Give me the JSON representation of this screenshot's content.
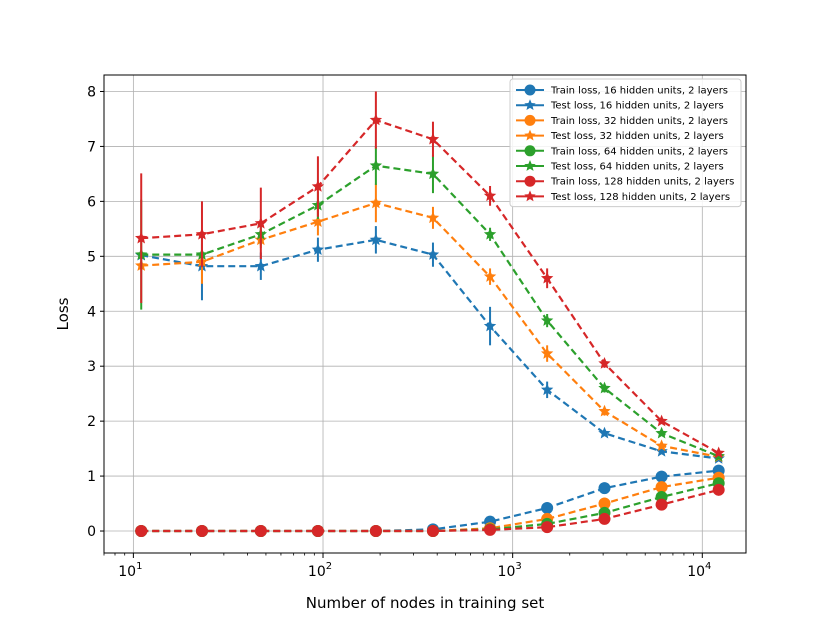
{
  "chart_data": {
    "type": "line",
    "title": "",
    "xlabel": "Number of nodes in training set",
    "ylabel": "Loss",
    "xscale": "log",
    "xlim": [
      7,
      17000
    ],
    "ylim": [
      -0.4,
      8.3
    ],
    "grid": true,
    "legend_position": "top-right",
    "x": [
      11,
      23,
      47,
      94,
      190,
      380,
      760,
      1520,
      3050,
      6100,
      12200
    ],
    "x_tick_labels": [
      {
        "base": "10",
        "exp": "1",
        "value": 10
      },
      {
        "base": "10",
        "exp": "2",
        "value": 100
      },
      {
        "base": "10",
        "exp": "3",
        "value": 1000
      },
      {
        "base": "10",
        "exp": "4",
        "value": 10000
      }
    ],
    "y_ticks": [
      0,
      1,
      2,
      3,
      4,
      5,
      6,
      7,
      8
    ],
    "series": [
      {
        "name": "Train loss, 16 hidden units, 2 layers",
        "color": "#1f77b4",
        "marker": "circle",
        "values": [
          0,
          0,
          0,
          0,
          0,
          0.03,
          0.17,
          0.42,
          0.78,
          0.99,
          1.1
        ],
        "errors": [
          0,
          0,
          0,
          0,
          0,
          0,
          0,
          0,
          0,
          0,
          0
        ]
      },
      {
        "name": "Test loss, 16 hidden units, 2 layers",
        "color": "#1f77b4",
        "marker": "star",
        "values": [
          5.02,
          4.82,
          4.82,
          5.12,
          5.3,
          5.03,
          3.73,
          2.57,
          1.78,
          1.45,
          1.32
        ],
        "errors": [
          0.05,
          0.62,
          0.25,
          0.22,
          0.25,
          0.22,
          0.35,
          0.15,
          0.05,
          0.05,
          0.05
        ]
      },
      {
        "name": "Train loss, 32 hidden units, 2 layers",
        "color": "#ff7f0e",
        "marker": "circle",
        "values": [
          0,
          0,
          0,
          0,
          0,
          0,
          0.05,
          0.22,
          0.5,
          0.8,
          0.97
        ],
        "errors": [
          0,
          0,
          0,
          0,
          0,
          0,
          0,
          0,
          0,
          0,
          0
        ]
      },
      {
        "name": "Test loss, 32 hidden units, 2 layers",
        "color": "#ff7f0e",
        "marker": "star",
        "values": [
          4.83,
          4.9,
          5.3,
          5.63,
          5.97,
          5.7,
          4.63,
          3.23,
          2.18,
          1.55,
          1.35
        ],
        "errors": [
          0.05,
          0.4,
          0.15,
          0.25,
          0.35,
          0.2,
          0.15,
          0.15,
          0.08,
          0.05,
          0.05
        ]
      },
      {
        "name": "Train loss, 64 hidden units, 2 layers",
        "color": "#2ca02c",
        "marker": "circle",
        "values": [
          0,
          0,
          0,
          0,
          0,
          0,
          0.03,
          0.13,
          0.33,
          0.62,
          0.87
        ],
        "errors": [
          0,
          0,
          0,
          0,
          0,
          0,
          0,
          0,
          0,
          0,
          0
        ]
      },
      {
        "name": "Test loss, 64 hidden units, 2 layers",
        "color": "#2ca02c",
        "marker": "star",
        "values": [
          5.03,
          5.03,
          5.4,
          5.93,
          6.65,
          6.5,
          5.4,
          3.83,
          2.6,
          1.78,
          1.36
        ],
        "errors": [
          1.0,
          0.2,
          0.2,
          0.25,
          0.35,
          0.35,
          0.12,
          0.12,
          0.08,
          0.05,
          0.05
        ]
      },
      {
        "name": "Train loss, 128 hidden units, 2 layers",
        "color": "#d62728",
        "marker": "circle",
        "values": [
          0,
          0,
          0,
          0,
          0,
          0,
          0.02,
          0.07,
          0.22,
          0.48,
          0.75
        ],
        "errors": [
          0,
          0,
          0,
          0,
          0,
          0,
          0,
          0,
          0,
          0,
          0
        ]
      },
      {
        "name": "Test loss, 128 hidden units, 2 layers",
        "color": "#d62728",
        "marker": "star",
        "values": [
          5.33,
          5.4,
          5.6,
          6.27,
          7.48,
          7.13,
          6.1,
          4.6,
          3.05,
          2.0,
          1.42
        ],
        "errors": [
          1.18,
          0.6,
          0.65,
          0.55,
          0.52,
          0.32,
          0.18,
          0.18,
          0.08,
          0.05,
          0.05
        ]
      }
    ]
  }
}
